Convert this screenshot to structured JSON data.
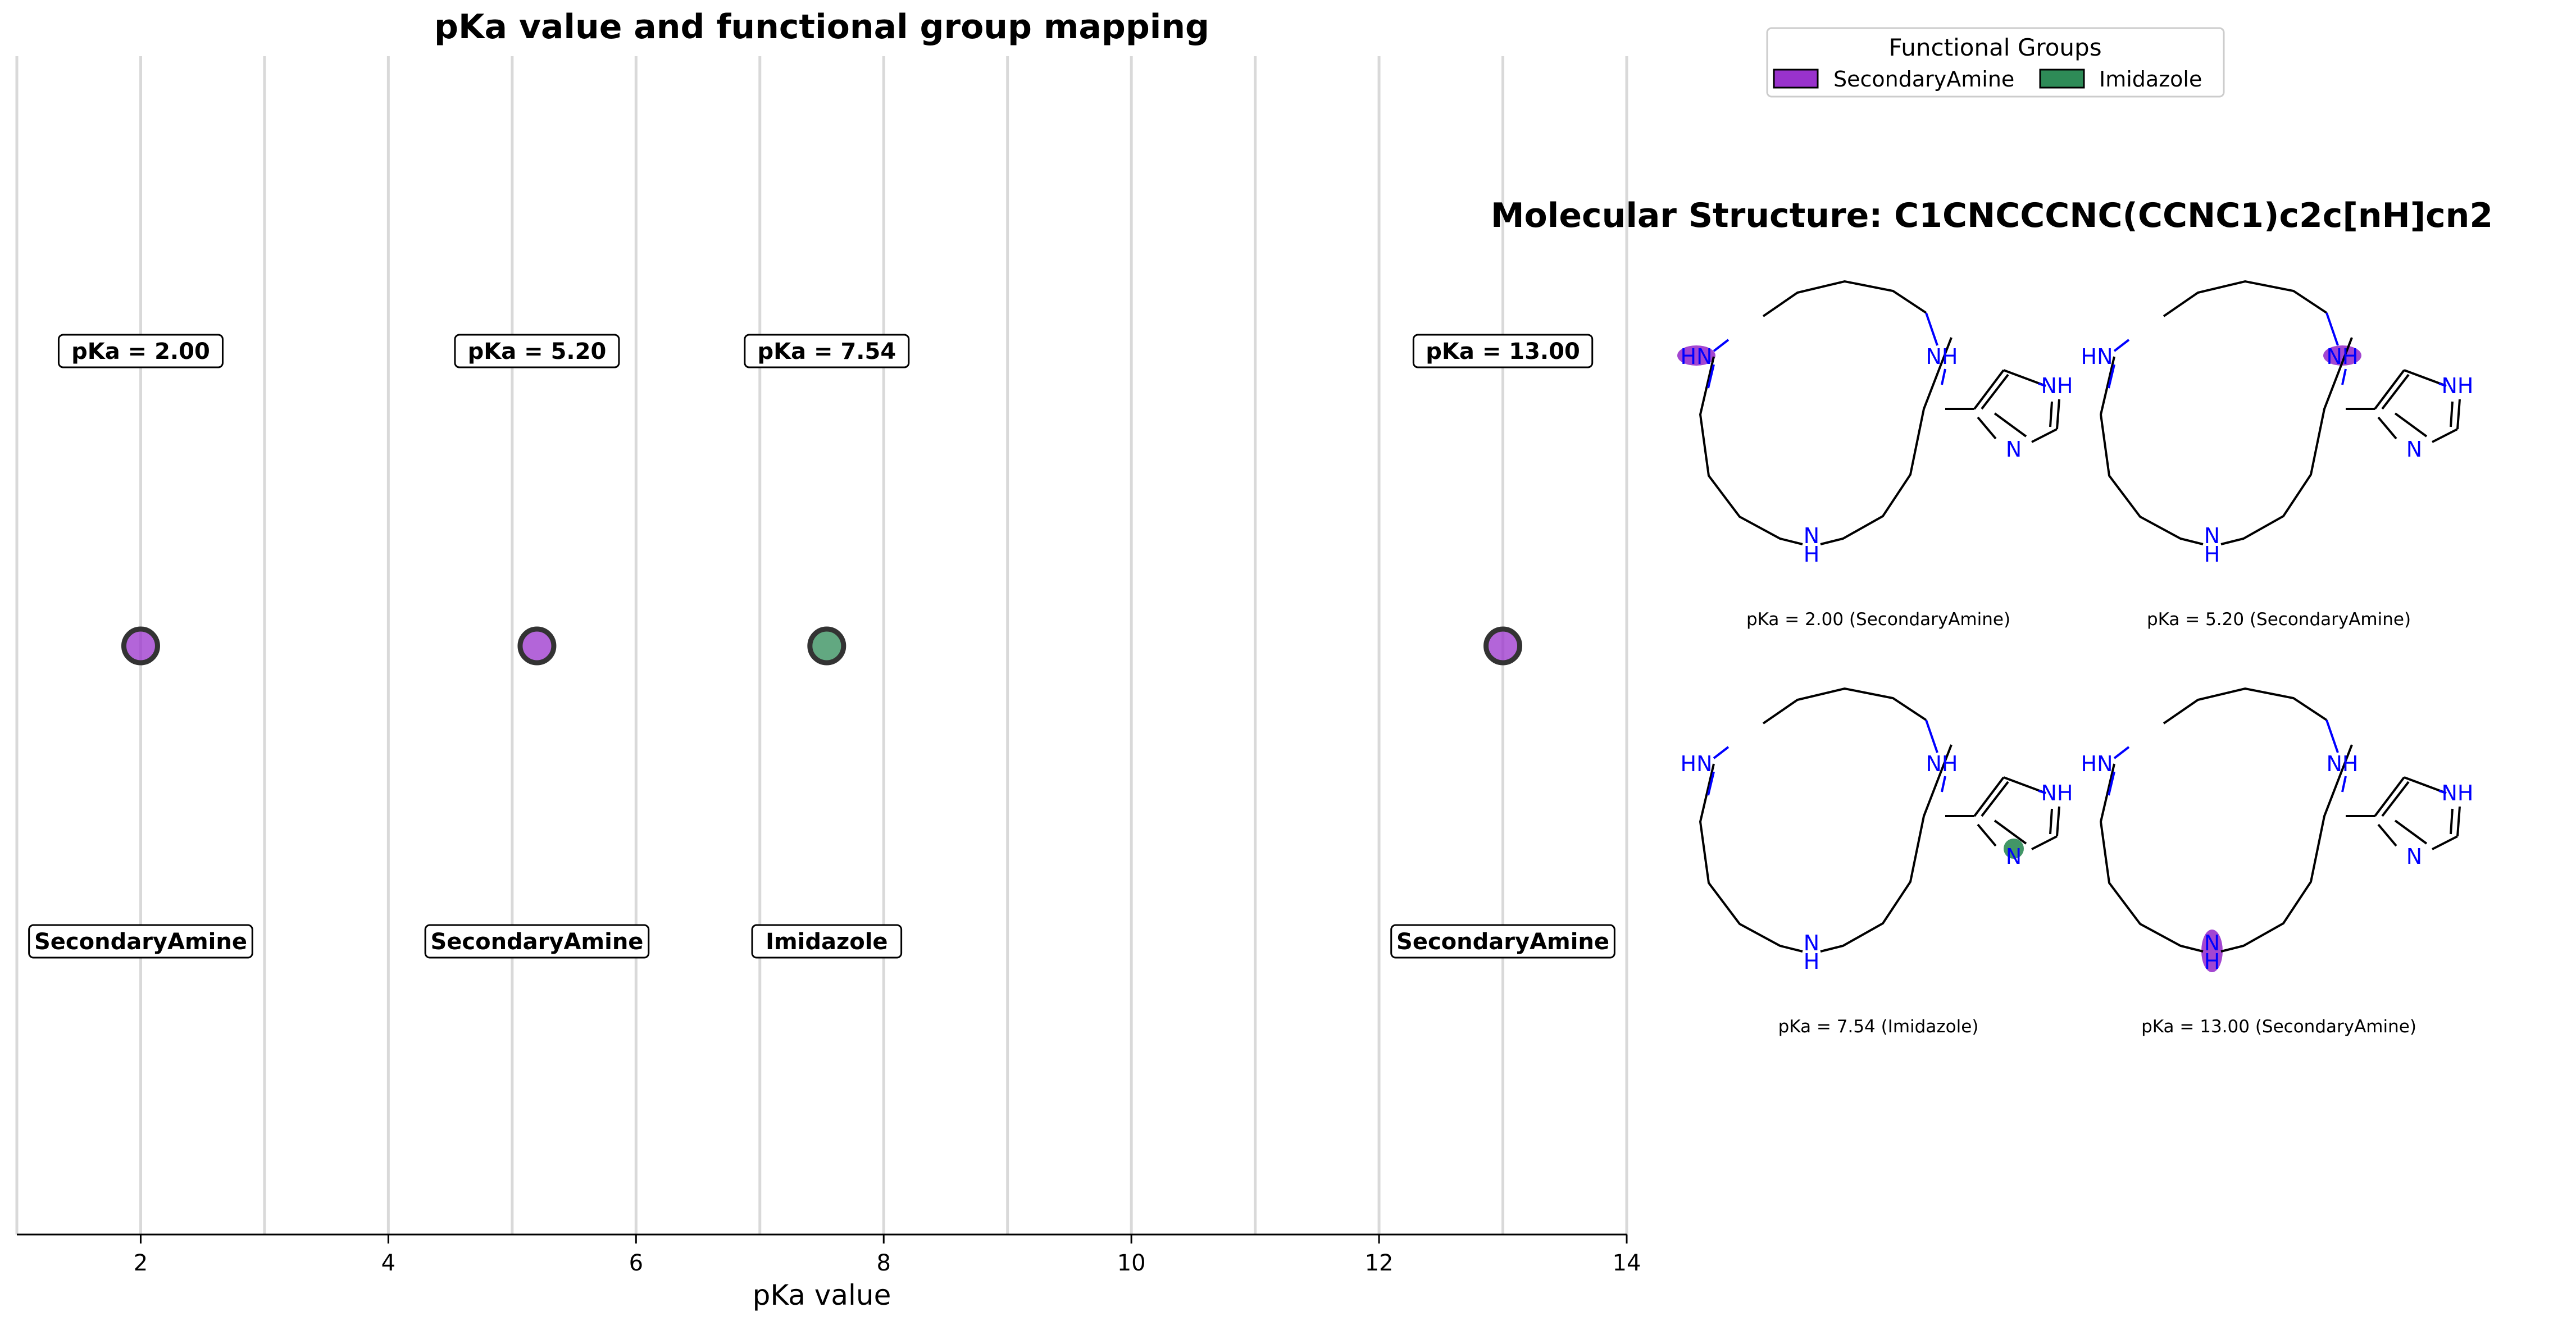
{
  "chart_data": {
    "type": "scatter",
    "title": "pKa value and functional group mapping",
    "xlabel": "pKa value",
    "xlim": [
      1,
      14
    ],
    "xticks": [
      2,
      4,
      6,
      8,
      10,
      12,
      14
    ],
    "grid_x": [
      1,
      2,
      3,
      4,
      5,
      6,
      7,
      8,
      9,
      10,
      11,
      12,
      13,
      14
    ],
    "y_axis_visible": false,
    "points": [
      {
        "x": 2.0,
        "label": "pKa = 2.00",
        "group": "SecondaryAmine",
        "color": "#9932cc"
      },
      {
        "x": 5.2,
        "label": "pKa = 5.20",
        "group": "SecondaryAmine",
        "color": "#9932cc"
      },
      {
        "x": 7.54,
        "label": "pKa = 7.54",
        "group": "Imidazole",
        "color": "#2e8b57"
      },
      {
        "x": 13.0,
        "label": "pKa = 13.00",
        "group": "SecondaryAmine",
        "color": "#9932cc"
      }
    ]
  },
  "legend": {
    "title": "Functional Groups",
    "items": [
      {
        "label": "SecondaryAmine",
        "color": "#9932cc"
      },
      {
        "label": "Imidazole",
        "color": "#2e8b57"
      }
    ]
  },
  "molecule": {
    "title": "Molecular Structure: C1CNCCCNC(CCNC1)c2c[nH]cn2",
    "panels": [
      {
        "caption": "pKa = 2.00 (SecondaryAmine)",
        "highlight": "n1",
        "color": "#9932cc"
      },
      {
        "caption": "pKa = 5.20 (SecondaryAmine)",
        "highlight": "n2",
        "color": "#9932cc"
      },
      {
        "caption": "pKa = 7.54 (Imidazole)",
        "highlight": "imn",
        "color": "#2e8b57"
      },
      {
        "caption": "pKa = 13.00 (SecondaryAmine)",
        "highlight": "n3",
        "color": "#9932cc"
      }
    ],
    "atoms": {
      "n1": "HN",
      "n2": "NH",
      "n3": "N",
      "n3h": "H",
      "imnh": "NH",
      "imn": "N"
    }
  }
}
